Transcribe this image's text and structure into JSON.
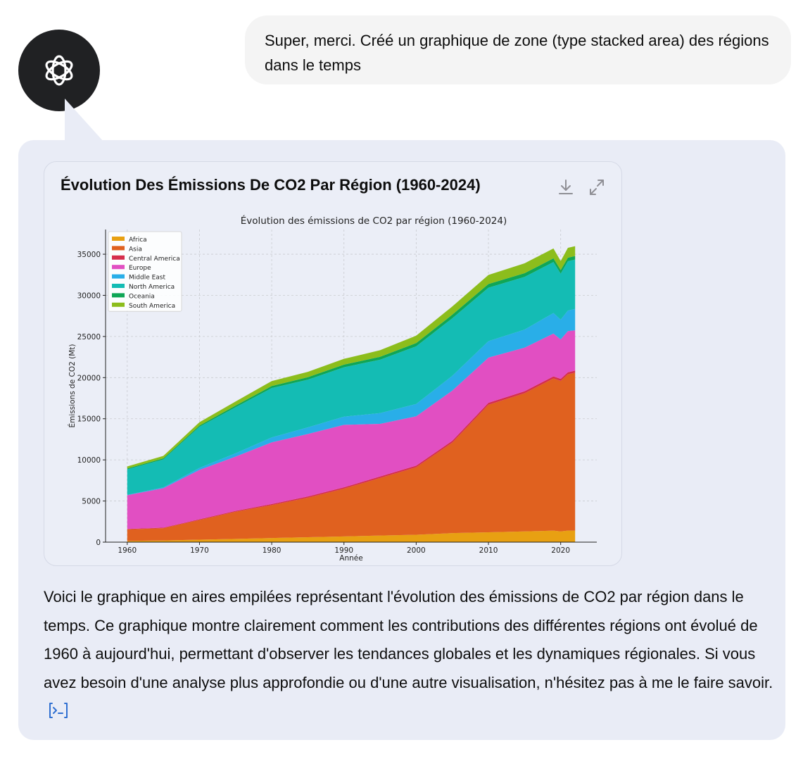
{
  "user_message": {
    "text": "Super, merci. Créé un graphique de zone (type stacked area) des régions dans le temps"
  },
  "assistant": {
    "avatar_icon": "openai-logo-icon",
    "chart_card": {
      "title": "Évolution Des Émissions De CO2 Par Région (1960-2024)",
      "download_icon": "download-icon",
      "expand_icon": "expand-icon"
    },
    "reply": "Voici le graphique en aires empilées représentant l'évolution des émissions de CO2 par région dans le temps. Ce graphique montre clairement comment les contributions des différentes régions ont évolué de 1960 à aujourd'hui, permettant d'observer les tendances globales et les dynamiques régionales. Si vous avez besoin d'une analyse plus approfondie ou d'une autre visualisation, n'hésitez pas à me le faire savoir.",
    "code_icon": "code-interpreter-icon"
  },
  "chart_data": {
    "type": "area",
    "stacked": true,
    "title": "Évolution des émissions de CO2 par région (1960-2024)",
    "xlabel": "Année",
    "ylabel": "Émissions de CO2 (Mt)",
    "xlim": [
      1957,
      2025
    ],
    "ylim": [
      0,
      38000
    ],
    "xticks": [
      1960,
      1970,
      1980,
      1990,
      2000,
      2010,
      2020
    ],
    "yticks": [
      0,
      5000,
      10000,
      15000,
      20000,
      25000,
      30000,
      35000
    ],
    "grid": true,
    "legend_position": "top-left",
    "x": [
      1960,
      1965,
      1970,
      1975,
      1980,
      1985,
      1990,
      1995,
      2000,
      2005,
      2010,
      2015,
      2019,
      2020,
      2021,
      2022
    ],
    "series": [
      {
        "name": "Africa",
        "color": "#e8a012",
        "values": [
          150,
          200,
          300,
          400,
          500,
          600,
          700,
          800,
          900,
          1100,
          1200,
          1300,
          1400,
          1300,
          1400,
          1400
        ]
      },
      {
        "name": "Asia",
        "color": "#e0611f",
        "values": [
          1400,
          1500,
          2400,
          3300,
          4000,
          4800,
          5800,
          7000,
          8200,
          11000,
          15500,
          16800,
          18500,
          18300,
          19000,
          19200
        ]
      },
      {
        "name": "Central America",
        "color": "#d62d4c",
        "values": [
          50,
          60,
          80,
          100,
          130,
          150,
          160,
          180,
          200,
          220,
          230,
          240,
          250,
          240,
          250,
          250
        ]
      },
      {
        "name": "Europe",
        "color": "#e14fc2",
        "values": [
          4100,
          4800,
          6000,
          6600,
          7500,
          7600,
          7600,
          6400,
          6000,
          6100,
          5500,
          5300,
          5200,
          4800,
          5000,
          4900
        ]
      },
      {
        "name": "Middle East",
        "color": "#29aee8",
        "values": [
          50,
          100,
          250,
          400,
          600,
          800,
          1000,
          1300,
          1500,
          1800,
          2000,
          2200,
          2500,
          2400,
          2500,
          2600
        ]
      },
      {
        "name": "North America",
        "color": "#14bcb4",
        "values": [
          3100,
          3400,
          5000,
          5600,
          6000,
          5800,
          6000,
          6500,
          7000,
          7000,
          6500,
          6400,
          6200,
          5600,
          6000,
          6000
        ]
      },
      {
        "name": "Oceania",
        "color": "#0fa656",
        "values": [
          100,
          120,
          150,
          200,
          250,
          300,
          320,
          350,
          400,
          430,
          450,
          450,
          450,
          430,
          430,
          430
        ]
      },
      {
        "name": "South America",
        "color": "#8cbd1c",
        "values": [
          250,
          300,
          400,
          500,
          600,
          650,
          700,
          800,
          900,
          1000,
          1100,
          1200,
          1200,
          1100,
          1200,
          1200
        ]
      }
    ]
  }
}
